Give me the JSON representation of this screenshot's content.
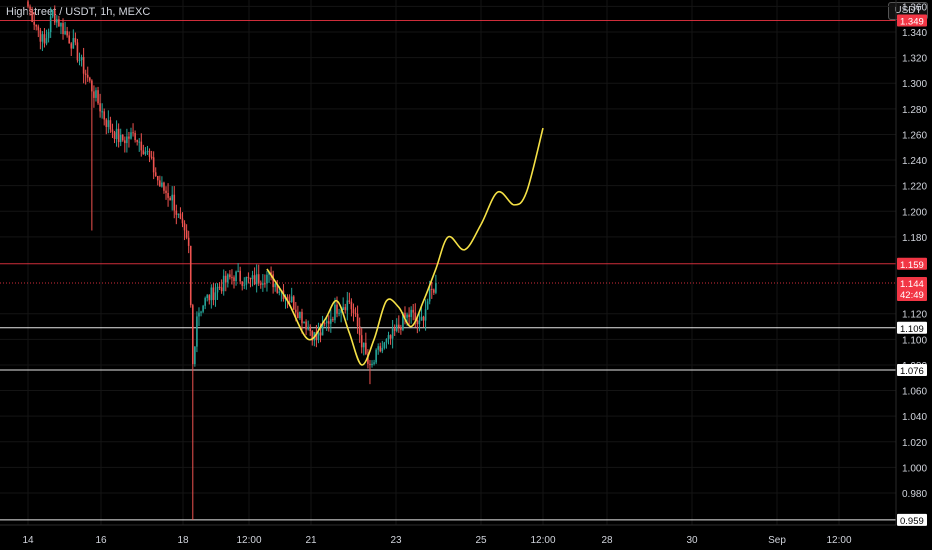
{
  "header": {
    "title": "Highstreet / USDT, 1h, MEXC",
    "unit_button": "USDT"
  },
  "chart_data": {
    "type": "candlestick",
    "symbol": "Highstreet / USDT",
    "interval": "1h",
    "exchange": "MEXC",
    "ylim": [
      0.955,
      1.365
    ],
    "y_ticks": [
      1.36,
      1.34,
      1.32,
      1.3,
      1.28,
      1.26,
      1.24,
      1.22,
      1.2,
      1.18,
      1.12,
      1.1,
      1.08,
      1.06,
      1.04,
      1.02,
      1.0,
      0.98
    ],
    "x_ticks": [
      "14",
      "16",
      "18",
      "12:00",
      "21",
      "23",
      "25",
      "12:00",
      "28",
      "30",
      "Sep",
      "12:00"
    ],
    "candle_anchors": [
      [
        0,
        1.36
      ],
      [
        8,
        1.33
      ],
      [
        12,
        1.355
      ],
      [
        18,
        1.34
      ],
      [
        22,
        1.33
      ],
      [
        30,
        1.3
      ],
      [
        38,
        1.27
      ],
      [
        45,
        1.255
      ],
      [
        52,
        1.26
      ],
      [
        58,
        1.245
      ],
      [
        64,
        1.22
      ],
      [
        70,
        1.21
      ],
      [
        74,
        1.19
      ],
      [
        78,
        1.17
      ],
      [
        80,
        1.08
      ],
      [
        82,
        1.12
      ],
      [
        86,
        1.13
      ],
      [
        92,
        1.14
      ],
      [
        100,
        1.15
      ],
      [
        108,
        1.145
      ],
      [
        116,
        1.15
      ],
      [
        122,
        1.14
      ],
      [
        128,
        1.13
      ],
      [
        134,
        1.115
      ],
      [
        140,
        1.1
      ],
      [
        144,
        1.11
      ],
      [
        150,
        1.125
      ],
      [
        156,
        1.13
      ],
      [
        160,
        1.11
      ],
      [
        166,
        1.075
      ],
      [
        170,
        1.09
      ],
      [
        176,
        1.1
      ],
      [
        182,
        1.115
      ],
      [
        186,
        1.12
      ],
      [
        190,
        1.11
      ],
      [
        194,
        1.13
      ],
      [
        198,
        1.144
      ]
    ],
    "levels": [
      {
        "value": 1.349,
        "label": "1.349",
        "color": "#f23645",
        "style": "solid"
      },
      {
        "value": 1.159,
        "label": "1.159",
        "color": "#f23645",
        "style": "solid"
      },
      {
        "value": 1.144,
        "label": "1.144",
        "sublabel": "42:49",
        "color": "#f23645",
        "style": "dotted"
      },
      {
        "value": 1.109,
        "label": "1.109",
        "color": "#ffffff",
        "style": "solid"
      },
      {
        "value": 1.076,
        "label": "1.076",
        "color": "#ffffff",
        "style": "solid"
      },
      {
        "value": 0.959,
        "label": "0.959",
        "color": "#ffffff",
        "style": "solid"
      }
    ],
    "projection": {
      "color": "#f5e146",
      "points": [
        [
          116,
          1.155
        ],
        [
          126,
          1.13
        ],
        [
          136,
          1.1
        ],
        [
          144,
          1.115
        ],
        [
          150,
          1.13
        ],
        [
          156,
          1.105
        ],
        [
          162,
          1.08
        ],
        [
          168,
          1.1
        ],
        [
          174,
          1.13
        ],
        [
          180,
          1.125
        ],
        [
          186,
          1.11
        ],
        [
          192,
          1.13
        ],
        [
          198,
          1.155
        ],
        [
          204,
          1.18
        ],
        [
          212,
          1.17
        ],
        [
          220,
          1.19
        ],
        [
          228,
          1.215
        ],
        [
          236,
          1.205
        ],
        [
          242,
          1.215
        ],
        [
          250,
          1.265
        ]
      ]
    },
    "colors": {
      "up": "#26a69a",
      "down": "#ef5350",
      "background": "#000000",
      "axis_text": "#d1d4dc"
    }
  }
}
